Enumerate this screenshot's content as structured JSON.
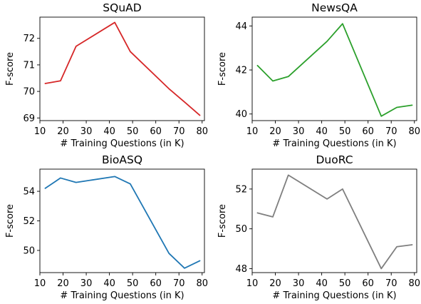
{
  "chart_data": [
    {
      "type": "line",
      "title": "SQuAD",
      "xlabel": "# Training Questions (in K)",
      "ylabel": "F-score",
      "x": [
        12.3,
        18.9,
        25.6,
        42.3,
        49.0,
        65.7,
        72.4,
        79.0
      ],
      "series": [
        {
          "values": [
            70.3,
            70.4,
            71.7,
            72.6,
            71.5,
            70.1,
            69.6,
            69.1
          ],
          "color": "#d62728"
        }
      ],
      "xlim": [
        10,
        81
      ],
      "ylim": [
        68.9,
        72.8
      ],
      "xticks": [
        10,
        20,
        30,
        40,
        50,
        60,
        70,
        80
      ],
      "yticks": [
        69,
        70,
        71,
        72
      ],
      "grid": false
    },
    {
      "type": "line",
      "title": "NewsQA",
      "xlabel": "# Training Questions (in K)",
      "ylabel": "F-score",
      "x": [
        12.3,
        18.9,
        25.6,
        42.3,
        49.0,
        65.7,
        72.4,
        79.0
      ],
      "series": [
        {
          "values": [
            42.2,
            41.5,
            41.7,
            43.3,
            44.1,
            39.9,
            40.3,
            40.4
          ],
          "color": "#2ca02c"
        }
      ],
      "xlim": [
        10,
        81
      ],
      "ylim": [
        39.7,
        44.4
      ],
      "xticks": [
        10,
        20,
        30,
        40,
        50,
        60,
        70,
        80
      ],
      "yticks": [
        40,
        42,
        44
      ],
      "grid": false
    },
    {
      "type": "line",
      "title": "BioASQ",
      "xlabel": "# Training Questions (in K)",
      "ylabel": "F-score",
      "x": [
        12.3,
        18.9,
        25.6,
        42.3,
        49.0,
        65.7,
        72.4,
        79.0
      ],
      "series": [
        {
          "values": [
            54.2,
            54.9,
            54.6,
            55.0,
            54.5,
            49.8,
            48.8,
            49.3
          ],
          "color": "#1f77b4"
        }
      ],
      "xlim": [
        10,
        81
      ],
      "ylim": [
        48.5,
        55.5
      ],
      "xticks": [
        10,
        20,
        30,
        40,
        50,
        60,
        70,
        80
      ],
      "yticks": [
        50,
        52,
        54
      ],
      "grid": false
    },
    {
      "type": "line",
      "title": "DuoRC",
      "xlabel": "# Training Questions (in K)",
      "ylabel": "F-score",
      "x": [
        12.3,
        18.9,
        25.6,
        42.3,
        49.0,
        65.7,
        72.4,
        79.0
      ],
      "series": [
        {
          "values": [
            50.8,
            50.6,
            52.7,
            51.5,
            52.0,
            48.0,
            49.1,
            49.2
          ],
          "color": "#7f7f7f"
        }
      ],
      "xlim": [
        10,
        81
      ],
      "ylim": [
        47.8,
        53.0
      ],
      "xticks": [
        10,
        20,
        30,
        40,
        50,
        60,
        70,
        80
      ],
      "yticks": [
        48,
        50,
        52
      ],
      "grid": false
    }
  ]
}
